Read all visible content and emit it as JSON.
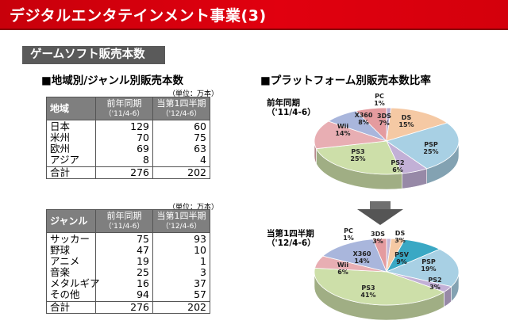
{
  "header": {
    "title": "デジタルエンタテインメント事業(3)"
  },
  "section": {
    "label": "ゲームソフト販売本数"
  },
  "left": {
    "region_heading": "■地域別/ジャンル別販売本数",
    "unit": "（単位：万本）",
    "region_table": {
      "label": "地域",
      "col1": "前年同期",
      "col1_range": "（'11/4-6）",
      "col2": "当第1四半期",
      "col2_range": "（'12/4-6）",
      "rows": [
        {
          "name": "日本",
          "prev": "129",
          "curr": "60"
        },
        {
          "name": "米州",
          "prev": "70",
          "curr": "75"
        },
        {
          "name": "欧州",
          "prev": "69",
          "curr": "63"
        },
        {
          "name": "アジア",
          "prev": "8",
          "curr": "4"
        }
      ],
      "total": {
        "name": "合計",
        "prev": "276",
        "curr": "202"
      }
    },
    "genre_table": {
      "label": "ジャンル",
      "col1": "前年同期",
      "col1_range": "（'11/4-6）",
      "col2": "当第1四半期",
      "col2_range": "（'12/4-6）",
      "rows": [
        {
          "name": "サッカー",
          "prev": "75",
          "curr": "93"
        },
        {
          "name": "野球",
          "prev": "47",
          "curr": "10"
        },
        {
          "name": "アニメ",
          "prev": "19",
          "curr": "1"
        },
        {
          "name": "音楽",
          "prev": "25",
          "curr": "3"
        },
        {
          "name": "メタルギア",
          "prev": "16",
          "curr": "37"
        },
        {
          "name": "その他",
          "prev": "94",
          "curr": "57"
        }
      ],
      "total": {
        "name": "合計",
        "prev": "276",
        "curr": "202"
      }
    }
  },
  "right": {
    "heading": "■プラットフォーム別販売本数比率"
  },
  "chart_data": [
    {
      "type": "pie",
      "title": "前年同期",
      "subtitle": "（'11/4-6）",
      "slices": [
        {
          "label": "PC",
          "value": 1,
          "pct": "1%",
          "color": "#b9a9cf"
        },
        {
          "label": "DS",
          "value": 15,
          "pct": "15%",
          "color": "#f5c9a4"
        },
        {
          "label": "PSP",
          "value": 25,
          "pct": "25%",
          "color": "#a8d0e4"
        },
        {
          "label": "PS2",
          "value": 6,
          "pct": "6%",
          "color": "#c2b0d6"
        },
        {
          "label": "PS3",
          "value": 25,
          "pct": "25%",
          "color": "#cddfa9"
        },
        {
          "label": "Wii",
          "value": 14,
          "pct": "14%",
          "color": "#e8aeb3"
        },
        {
          "label": "X360",
          "value": 8,
          "pct": "8%",
          "color": "#a9b6dc"
        },
        {
          "label": "3DS",
          "value": 7,
          "pct": "7%",
          "color": "#e49b9f"
        }
      ]
    },
    {
      "type": "pie",
      "title": "当第1四半期",
      "subtitle": "（'12/4-6）",
      "slices": [
        {
          "label": "PC",
          "value": 1,
          "pct": "1%",
          "color": "#c2b7d8"
        },
        {
          "label": "DS",
          "value": 3,
          "pct": "3%",
          "color": "#f5c9a4"
        },
        {
          "label": "PSV",
          "value": 9,
          "pct": "9%",
          "color": "#3aa8c4"
        },
        {
          "label": "PSP",
          "value": 19,
          "pct": "19%",
          "color": "#a8d0e4"
        },
        {
          "label": "PS2",
          "value": 3,
          "pct": "3%",
          "color": "#c2b0d6"
        },
        {
          "label": "PS3",
          "value": 41,
          "pct": "41%",
          "color": "#cddfa9"
        },
        {
          "label": "Wii",
          "value": 6,
          "pct": "6%",
          "color": "#e8aeb3"
        },
        {
          "label": "X360",
          "value": 14,
          "pct": "14%",
          "color": "#a9b6dc"
        },
        {
          "label": "3DS",
          "value": 3,
          "pct": "3%",
          "color": "#e49b9f"
        }
      ]
    }
  ]
}
